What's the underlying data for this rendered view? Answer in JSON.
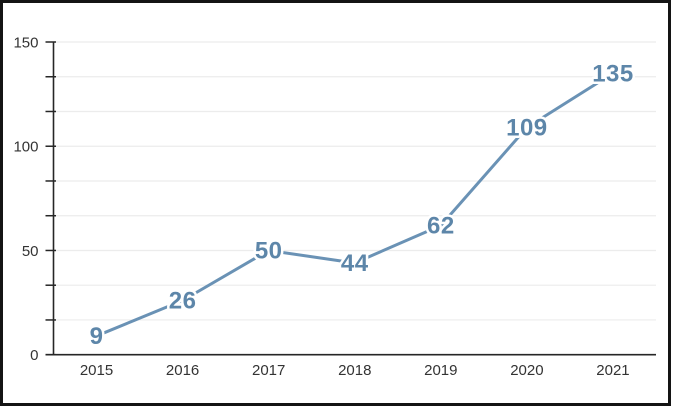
{
  "chart_data": {
    "type": "line",
    "categories": [
      "2015",
      "2016",
      "2017",
      "2018",
      "2019",
      "2020",
      "2021"
    ],
    "values": [
      9,
      26,
      50,
      44,
      62,
      109,
      135
    ],
    "ylim": [
      0,
      150
    ],
    "y_major_ticks": [
      0,
      50,
      100,
      150
    ],
    "y_minor_divisions_per_major": 3,
    "grid": true,
    "legend": "none",
    "markers": "none",
    "data_labels": "centered-on-points"
  },
  "colors": {
    "line": "#6a92b5",
    "data_label": "#5d86a9",
    "gridline": "#ececec",
    "axis": "#262626",
    "axis_label": "#333333",
    "frame_border": "#141414",
    "background": "#ffffff"
  }
}
